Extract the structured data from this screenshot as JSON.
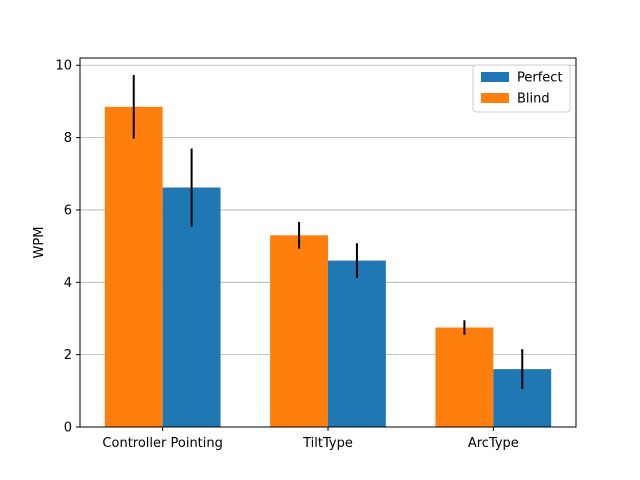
{
  "chart_data": {
    "type": "bar",
    "title": "",
    "xlabel": "",
    "ylabel": "WPM",
    "categories": [
      "Controller Pointing",
      "TiltType",
      "ArcType"
    ],
    "series": [
      {
        "name": "Blind",
        "color": "#ff7f0e",
        "values": [
          8.85,
          5.3,
          2.75
        ],
        "errors": [
          0.88,
          0.37,
          0.2
        ]
      },
      {
        "name": "Perfect",
        "color": "#1f77b4",
        "values": [
          6.62,
          4.6,
          1.6
        ],
        "errors": [
          1.08,
          0.48,
          0.55
        ]
      }
    ],
    "legend_order": [
      "Perfect",
      "Blind"
    ],
    "legend_position": "top-right",
    "ylim": [
      0,
      10.2
    ],
    "yticks": [
      0,
      2,
      4,
      6,
      8,
      10
    ],
    "grid": "y"
  }
}
